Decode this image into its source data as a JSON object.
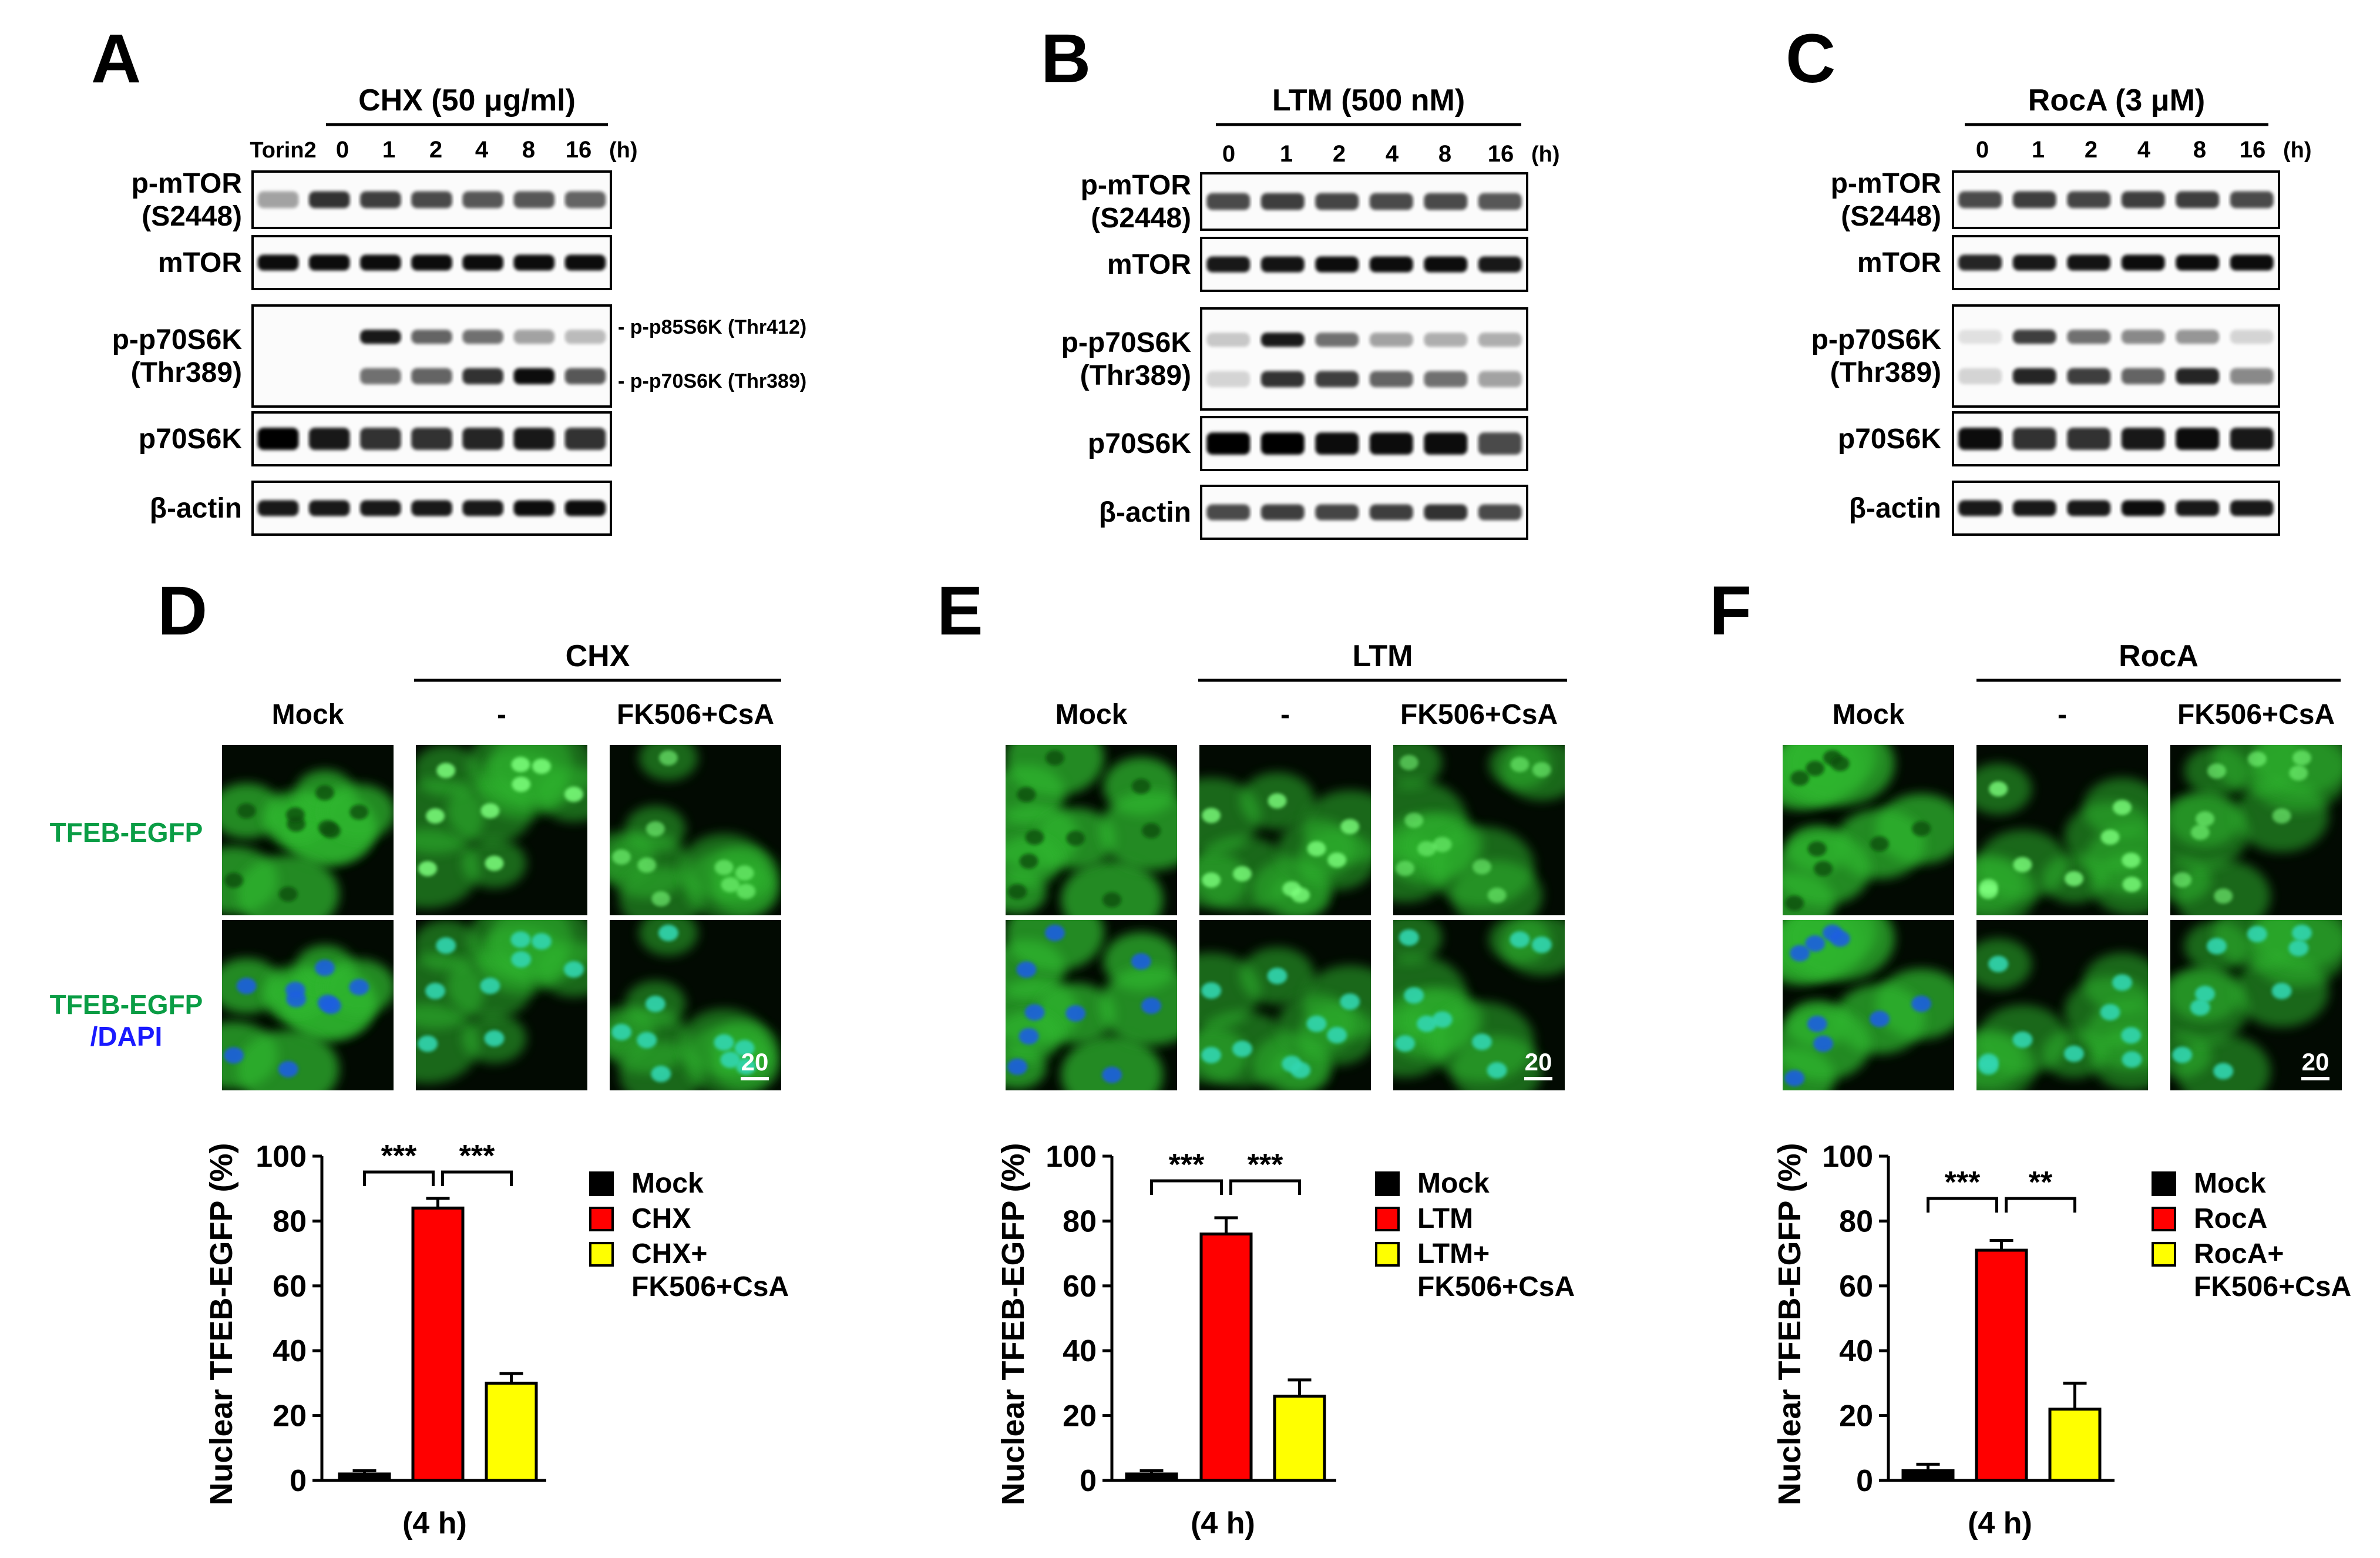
{
  "figure": {
    "panels": {
      "A": {
        "letter": "A",
        "treatment": "CHX (50 μg/ml)",
        "extra_lane": "Torin2",
        "timepoints": [
          "0",
          "1",
          "2",
          "4",
          "8",
          "16"
        ],
        "time_unit": "(h)",
        "rows": [
          "p-mTOR\n(S2448)",
          "mTOR",
          "p-p70S6K\n(Thr389)",
          "p70S6K",
          "β-actin"
        ],
        "annotations": [
          "- p-p85S6K (Thr412)",
          "- p-p70S6K (Thr389)"
        ]
      },
      "B": {
        "letter": "B",
        "treatment": "LTM (500 nM)",
        "timepoints": [
          "0",
          "1",
          "2",
          "4",
          "8",
          "16"
        ],
        "time_unit": "(h)",
        "rows": [
          "p-mTOR\n(S2448)",
          "mTOR",
          "p-p70S6K\n(Thr389)",
          "p70S6K",
          "β-actin"
        ]
      },
      "C": {
        "letter": "C",
        "treatment": "RocA (3 μM)",
        "timepoints": [
          "0",
          "1",
          "2",
          "4",
          "8",
          "16"
        ],
        "time_unit": "(h)",
        "rows": [
          "p-mTOR\n(S2448)",
          "mTOR",
          "p-p70S6K\n(Thr389)",
          "p70S6K",
          "β-actin"
        ]
      },
      "D": {
        "letter": "D",
        "treatment": "CHX",
        "columns": [
          "Mock",
          "-",
          "FK506+CsA"
        ],
        "row_labels": [
          "TFEB-EGFP",
          "TFEB-EGFP",
          "/DAPI"
        ],
        "scale": "20"
      },
      "E": {
        "letter": "E",
        "treatment": "LTM",
        "columns": [
          "Mock",
          "-",
          "FK506+CsA"
        ],
        "scale": "20"
      },
      "F": {
        "letter": "F",
        "treatment": "RocA",
        "columns": [
          "Mock",
          "-",
          "FK506+CsA"
        ],
        "scale": "20"
      }
    },
    "colors": {
      "green": "#0a9d45",
      "blue": "#1a1aff",
      "mock": "#000000",
      "treatment": "#ff0000",
      "inhibitor": "#ffff00"
    }
  },
  "chart_data": [
    {
      "type": "bar",
      "panel": "D",
      "categories": [
        "Mock",
        "CHX",
        "CHX+\nFK506+CsA"
      ],
      "values": [
        2,
        84,
        30
      ],
      "errors": [
        1,
        3,
        3
      ],
      "ylabel": "Nuclear TFEB-EGFP (%)",
      "xlabel": "(4 h)",
      "ylim": [
        0,
        100
      ],
      "yticks": [
        "0",
        "20",
        "40",
        "60",
        "80",
        "100"
      ],
      "significance": [
        "***",
        "***"
      ],
      "legend": [
        "Mock",
        "CHX",
        "CHX+",
        "FK506+CsA"
      ]
    },
    {
      "type": "bar",
      "panel": "E",
      "categories": [
        "Mock",
        "LTM",
        "LTM+\nFK506+CsA"
      ],
      "values": [
        2,
        76,
        26
      ],
      "errors": [
        1,
        5,
        5
      ],
      "ylabel": "Nuclear TFEB-EGFP (%)",
      "xlabel": "(4 h)",
      "ylim": [
        0,
        100
      ],
      "yticks": [
        "0",
        "20",
        "40",
        "60",
        "80",
        "100"
      ],
      "significance": [
        "***",
        "***"
      ],
      "legend": [
        "Mock",
        "LTM",
        "LTM+",
        "FK506+CsA"
      ]
    },
    {
      "type": "bar",
      "panel": "F",
      "categories": [
        "Mock",
        "RocA",
        "RocA+\nFK506+CsA"
      ],
      "values": [
        3,
        71,
        22
      ],
      "errors": [
        2,
        3,
        8
      ],
      "ylabel": "Nuclear TFEB-EGFP (%)",
      "xlabel": "(4 h)",
      "ylim": [
        0,
        100
      ],
      "yticks": [
        "0",
        "20",
        "40",
        "60",
        "80",
        "100"
      ],
      "significance": [
        "***",
        "**"
      ],
      "legend": [
        "Mock",
        "RocA",
        "RocA+",
        "FK506+CsA"
      ]
    }
  ]
}
